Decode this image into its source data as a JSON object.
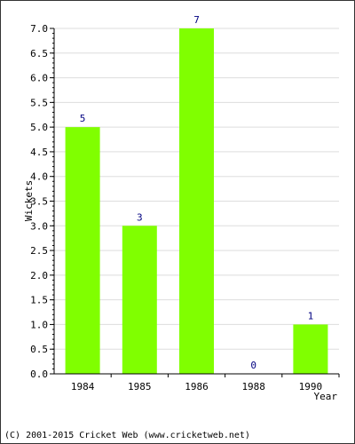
{
  "chart_data": {
    "type": "bar",
    "categories": [
      "1984",
      "1985",
      "1986",
      "1988",
      "1990"
    ],
    "values": [
      5,
      3,
      7,
      0,
      1
    ],
    "data_labels": [
      "5",
      "3",
      "7",
      "0",
      "1"
    ],
    "xlabel": "Year",
    "ylabel": "Wickets",
    "ylim": [
      0,
      7.0
    ],
    "y_ticks": [
      "0.0",
      "0.5",
      "1.0",
      "1.5",
      "2.0",
      "2.5",
      "3.0",
      "3.5",
      "4.0",
      "4.5",
      "5.0",
      "5.5",
      "6.0",
      "6.5",
      "7.0"
    ],
    "grid": true,
    "bar_color": "#80ff00",
    "label_color": "#000080"
  },
  "footer": "(C) 2001-2015 Cricket Web (www.cricketweb.net)"
}
